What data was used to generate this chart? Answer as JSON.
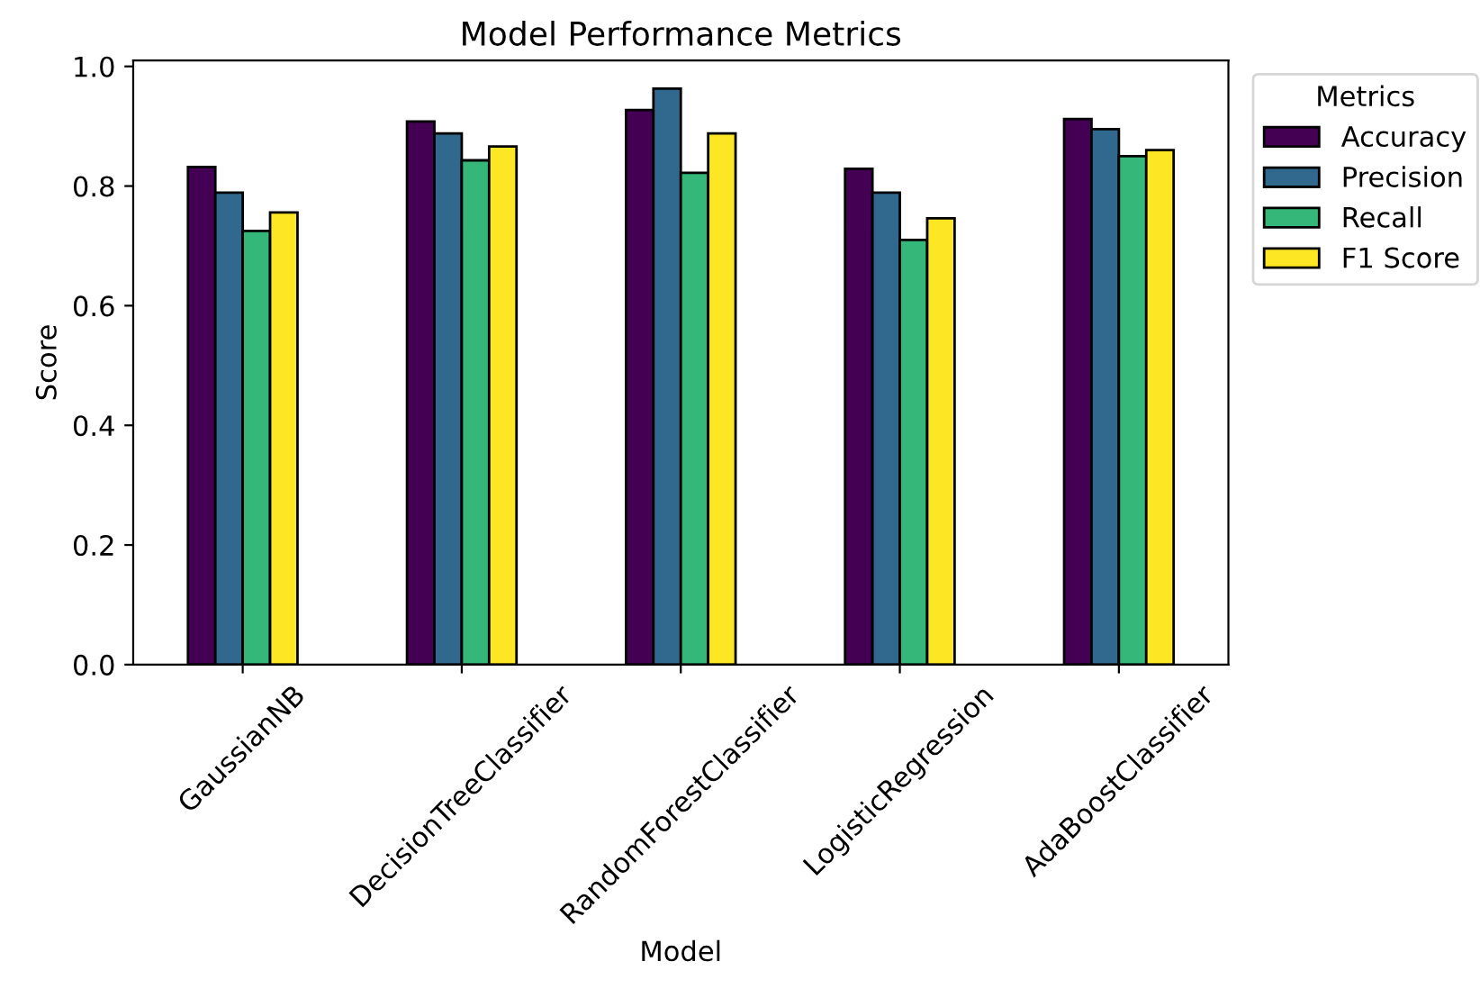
{
  "chart_data": {
    "type": "bar",
    "title": "Model Performance Metrics",
    "xlabel": "Model",
    "ylabel": "Score",
    "legend_title": "Metrics",
    "legend": "top right",
    "categories": [
      "GaussianNB",
      "DecisionTreeClassifier",
      "RandomForestClassifier",
      "LogisticRegression",
      "AdaBoostClassifier"
    ],
    "series": [
      {
        "name": "Accuracy",
        "color": "#440154",
        "values": [
          0.832,
          0.908,
          0.927,
          0.829,
          0.912
        ]
      },
      {
        "name": "Precision",
        "color": "#31688e",
        "values": [
          0.789,
          0.888,
          0.963,
          0.789,
          0.895
        ]
      },
      {
        "name": "Recall",
        "color": "#35b779",
        "values": [
          0.725,
          0.843,
          0.822,
          0.71,
          0.85
        ]
      },
      {
        "name": "F1 Score",
        "color": "#fde725",
        "values": [
          0.756,
          0.866,
          0.888,
          0.746,
          0.86
        ]
      }
    ],
    "ylim": [
      0,
      1.01
    ],
    "yticks": [
      {
        "value": 0,
        "label": "0.0"
      },
      0.2,
      0.4,
      0.6,
      0.8,
      {
        "value": 1,
        "label": "1.0"
      }
    ],
    "grid": false
  }
}
